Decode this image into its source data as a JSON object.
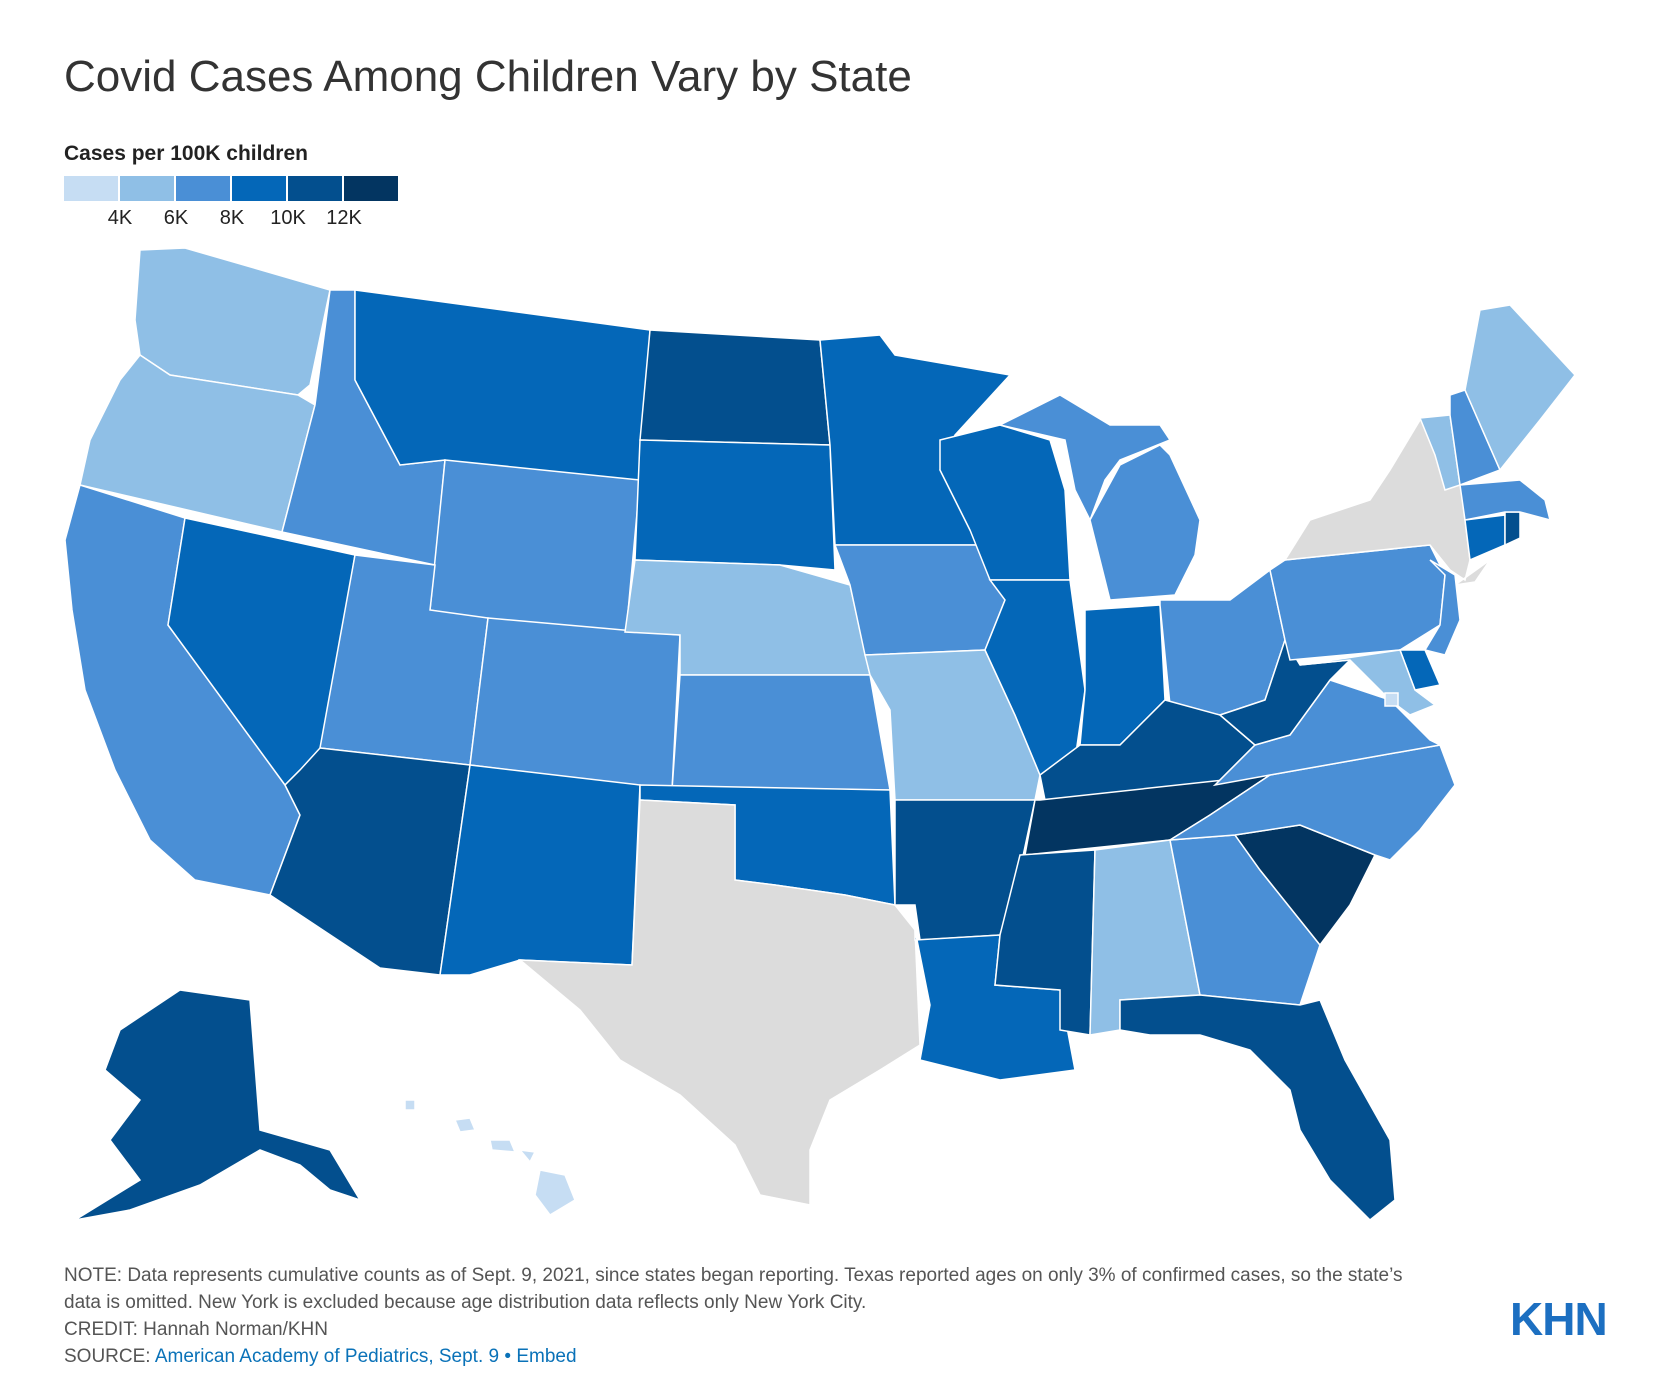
{
  "title": "Covid Cases Among Children Vary by State",
  "legend": {
    "title": "Cases per 100K children",
    "colors": [
      "#c6ddf3",
      "#8fbfe6",
      "#4a8fd6",
      "#0467b8",
      "#034f8e",
      "#033561"
    ],
    "ticks": [
      "4K",
      "6K",
      "8K",
      "10K",
      "12K"
    ]
  },
  "no_data_color": "#dcdcdc",
  "states": [
    {
      "abbr": "WA",
      "bin": 1
    },
    {
      "abbr": "OR",
      "bin": 1
    },
    {
      "abbr": "CA",
      "bin": 2
    },
    {
      "abbr": "NV",
      "bin": 3
    },
    {
      "abbr": "ID",
      "bin": 2
    },
    {
      "abbr": "MT",
      "bin": 3
    },
    {
      "abbr": "WY",
      "bin": 2
    },
    {
      "abbr": "UT",
      "bin": 2
    },
    {
      "abbr": "CO",
      "bin": 2
    },
    {
      "abbr": "AZ",
      "bin": 4
    },
    {
      "abbr": "NM",
      "bin": 3
    },
    {
      "abbr": "ND",
      "bin": 4
    },
    {
      "abbr": "SD",
      "bin": 3
    },
    {
      "abbr": "NE",
      "bin": 1
    },
    {
      "abbr": "KS",
      "bin": 2
    },
    {
      "abbr": "OK",
      "bin": 3
    },
    {
      "abbr": "TX",
      "bin": null
    },
    {
      "abbr": "MN",
      "bin": 3
    },
    {
      "abbr": "IA",
      "bin": 2
    },
    {
      "abbr": "MO",
      "bin": 1
    },
    {
      "abbr": "AR",
      "bin": 4
    },
    {
      "abbr": "LA",
      "bin": 3
    },
    {
      "abbr": "WI",
      "bin": 3
    },
    {
      "abbr": "IL",
      "bin": 3
    },
    {
      "abbr": "MI",
      "bin": 2
    },
    {
      "abbr": "IN",
      "bin": 3
    },
    {
      "abbr": "OH",
      "bin": 2
    },
    {
      "abbr": "KY",
      "bin": 4
    },
    {
      "abbr": "TN",
      "bin": 5
    },
    {
      "abbr": "MS",
      "bin": 4
    },
    {
      "abbr": "AL",
      "bin": 1
    },
    {
      "abbr": "GA",
      "bin": 2
    },
    {
      "abbr": "FL",
      "bin": 4
    },
    {
      "abbr": "SC",
      "bin": 5
    },
    {
      "abbr": "NC",
      "bin": 2
    },
    {
      "abbr": "VA",
      "bin": 2
    },
    {
      "abbr": "WV",
      "bin": 4
    },
    {
      "abbr": "PA",
      "bin": 2
    },
    {
      "abbr": "NY",
      "bin": null
    },
    {
      "abbr": "NJ",
      "bin": 2
    },
    {
      "abbr": "DE",
      "bin": 3
    },
    {
      "abbr": "MD",
      "bin": 1
    },
    {
      "abbr": "DC",
      "bin": 0
    },
    {
      "abbr": "CT",
      "bin": 3
    },
    {
      "abbr": "RI",
      "bin": 4
    },
    {
      "abbr": "MA",
      "bin": 2
    },
    {
      "abbr": "VT",
      "bin": 1
    },
    {
      "abbr": "NH",
      "bin": 2
    },
    {
      "abbr": "ME",
      "bin": 1
    },
    {
      "abbr": "AK",
      "bin": 4
    },
    {
      "abbr": "HI",
      "bin": 0
    }
  ],
  "note": {
    "text": "NOTE: Data represents cumulative counts as of Sept. 9, 2021, since states began reporting. Texas reported ages on only 3% of confirmed cases, so the state’s data is omitted. New York is excluded because age distribution data reflects only New York City.",
    "credit": "CREDIT: Hannah Norman/KHN",
    "source_label": "SOURCE:",
    "source_link": "American Academy of Pediatrics, Sept. 9",
    "separator": "•",
    "embed": "Embed"
  },
  "logo": "KHN"
}
